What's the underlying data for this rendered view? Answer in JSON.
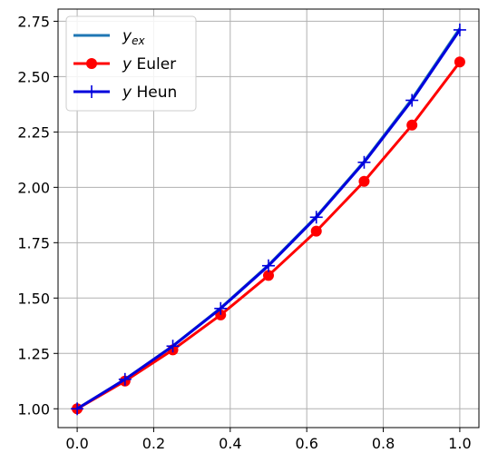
{
  "chart_data": {
    "type": "line",
    "title": "",
    "xlabel": "",
    "ylabel": "",
    "xlim": [
      -0.05,
      1.05
    ],
    "ylim": [
      0.915,
      2.805
    ],
    "xticks": [
      0.0,
      0.2,
      0.4,
      0.6,
      0.8,
      1.0
    ],
    "xtick_labels": [
      "0.0",
      "0.2",
      "0.4",
      "0.6",
      "0.8",
      "1.0"
    ],
    "yticks": [
      1.0,
      1.25,
      1.5,
      1.75,
      2.0,
      2.25,
      2.5,
      2.75
    ],
    "ytick_labels": [
      "1.00",
      "1.25",
      "1.50",
      "1.75",
      "2.00",
      "2.25",
      "2.50",
      "2.75"
    ],
    "grid": true,
    "legend_position": "top-left",
    "series": [
      {
        "name_main": "y",
        "name_sub": "ex",
        "color": "#1f77b4",
        "marker": "none",
        "x": [
          0.0,
          0.125,
          0.25,
          0.375,
          0.5,
          0.625,
          0.75,
          0.875,
          1.0
        ],
        "y": [
          1.0,
          1.133,
          1.284,
          1.455,
          1.649,
          1.868,
          2.117,
          2.399,
          2.718
        ]
      },
      {
        "name_main": "y",
        "name_rest": " Euler",
        "color": "#ff0000",
        "marker": "circle",
        "x": [
          0.0,
          0.125,
          0.25,
          0.375,
          0.5,
          0.625,
          0.75,
          0.875,
          1.0
        ],
        "y": [
          1.0,
          1.125,
          1.266,
          1.424,
          1.602,
          1.802,
          2.027,
          2.281,
          2.566
        ]
      },
      {
        "name_main": "y",
        "name_rest": " Heun",
        "color": "#0000dd",
        "marker": "plus",
        "x": [
          0.0,
          0.125,
          0.25,
          0.375,
          0.5,
          0.625,
          0.75,
          0.875,
          1.0
        ],
        "y": [
          1.0,
          1.133,
          1.283,
          1.453,
          1.646,
          1.865,
          2.113,
          2.393,
          2.711
        ]
      }
    ]
  }
}
